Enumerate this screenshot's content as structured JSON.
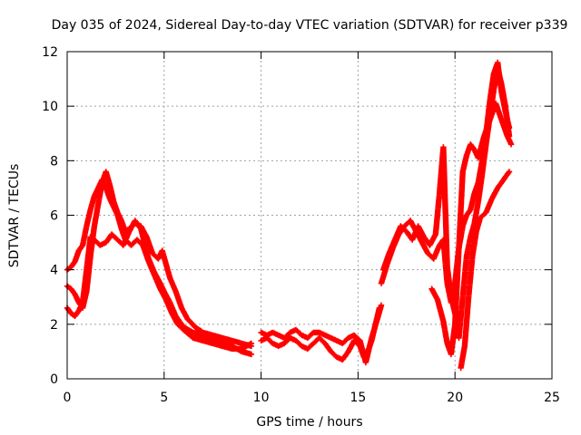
{
  "chart_data": {
    "type": "scatter",
    "title": "Day 035 of 2024, Sidereal Day-to-day VTEC variation (SDTVAR) for receiver p339",
    "xlabel": "GPS time / hours",
    "ylabel": "SDTVAR / TECUs",
    "xlim": [
      0,
      25
    ],
    "ylim": [
      0,
      12
    ],
    "xticks": [
      "0",
      "5",
      "10",
      "15",
      "20",
      "25"
    ],
    "yticks": [
      "0",
      "2",
      "4",
      "6",
      "8",
      "10",
      "12"
    ],
    "grid": true,
    "marker": "+",
    "color": "#ff0000",
    "series": [
      {
        "name": "SDTVAR",
        "comment": "approximate trace samples [hours, TECU] read from the figure",
        "curves": [
          [
            [
              0.0,
              3.4
            ],
            [
              0.2,
              3.3
            ],
            [
              0.4,
              3.1
            ],
            [
              0.6,
              2.8
            ],
            [
              0.8,
              2.6
            ],
            [
              1.0,
              3.2
            ],
            [
              1.2,
              4.5
            ],
            [
              1.4,
              5.6
            ],
            [
              1.6,
              6.4
            ],
            [
              1.8,
              7.2
            ],
            [
              2.0,
              7.6
            ],
            [
              2.2,
              7.1
            ],
            [
              2.4,
              6.5
            ],
            [
              2.6,
              6.1
            ],
            [
              2.8,
              5.8
            ],
            [
              3.0,
              5.4
            ],
            [
              3.2,
              5.5
            ],
            [
              3.5,
              5.7
            ],
            [
              3.8,
              5.6
            ],
            [
              4.1,
              5.2
            ],
            [
              4.4,
              4.6
            ],
            [
              4.7,
              4.4
            ],
            [
              4.9,
              4.7
            ],
            [
              5.1,
              4.2
            ],
            [
              5.3,
              3.7
            ],
            [
              5.6,
              3.2
            ],
            [
              5.9,
              2.6
            ],
            [
              6.2,
              2.2
            ],
            [
              6.6,
              1.9
            ],
            [
              7.0,
              1.7
            ],
            [
              7.5,
              1.6
            ],
            [
              8.0,
              1.5
            ],
            [
              8.5,
              1.4
            ],
            [
              9.0,
              1.3
            ],
            [
              9.5,
              1.2
            ]
          ],
          [
            [
              0.0,
              2.6
            ],
            [
              0.2,
              2.4
            ],
            [
              0.4,
              2.3
            ],
            [
              0.6,
              2.5
            ],
            [
              0.8,
              2.8
            ],
            [
              1.0,
              4.0
            ],
            [
              1.2,
              5.2
            ],
            [
              1.4,
              5.1
            ],
            [
              1.7,
              4.9
            ],
            [
              2.0,
              5.0
            ],
            [
              2.3,
              5.3
            ],
            [
              2.6,
              5.1
            ],
            [
              2.9,
              4.9
            ],
            [
              3.2,
              5.4
            ],
            [
              3.5,
              5.8
            ],
            [
              3.8,
              5.5
            ],
            [
              4.2,
              4.4
            ],
            [
              4.5,
              3.9
            ],
            [
              4.8,
              3.5
            ],
            [
              5.0,
              3.2
            ],
            [
              5.3,
              2.8
            ],
            [
              5.6,
              2.3
            ],
            [
              6.0,
              1.9
            ],
            [
              6.5,
              1.7
            ],
            [
              7.0,
              1.6
            ],
            [
              7.5,
              1.4
            ],
            [
              8.0,
              1.3
            ],
            [
              8.5,
              1.2
            ],
            [
              9.0,
              1.0
            ],
            [
              9.5,
              0.9
            ]
          ],
          [
            [
              0.0,
              4.0
            ],
            [
              0.2,
              4.1
            ],
            [
              0.4,
              4.3
            ],
            [
              0.6,
              4.7
            ],
            [
              0.8,
              4.9
            ],
            [
              1.0,
              5.6
            ],
            [
              1.2,
              6.2
            ],
            [
              1.4,
              6.7
            ],
            [
              1.6,
              7.0
            ],
            [
              1.8,
              7.3
            ],
            [
              2.0,
              7.0
            ],
            [
              2.2,
              6.6
            ],
            [
              2.4,
              6.3
            ],
            [
              2.6,
              6.0
            ],
            [
              2.8,
              5.5
            ],
            [
              3.0,
              5.1
            ],
            [
              3.3,
              4.9
            ],
            [
              3.6,
              5.1
            ],
            [
              3.9,
              4.9
            ],
            [
              4.2,
              4.3
            ],
            [
              4.5,
              3.8
            ],
            [
              4.8,
              3.3
            ],
            [
              5.1,
              2.9
            ],
            [
              5.4,
              2.4
            ],
            [
              5.7,
              2.0
            ],
            [
              6.0,
              1.8
            ],
            [
              6.5,
              1.5
            ],
            [
              7.0,
              1.4
            ],
            [
              7.5,
              1.3
            ],
            [
              8.0,
              1.2
            ],
            [
              8.5,
              1.1
            ],
            [
              9.0,
              1.1
            ],
            [
              9.5,
              1.3
            ]
          ],
          [
            [
              10.0,
              1.4
            ],
            [
              10.3,
              1.5
            ],
            [
              10.6,
              1.3
            ],
            [
              10.9,
              1.2
            ],
            [
              11.2,
              1.3
            ],
            [
              11.5,
              1.5
            ],
            [
              11.8,
              1.4
            ],
            [
              12.1,
              1.2
            ],
            [
              12.4,
              1.1
            ],
            [
              12.7,
              1.3
            ],
            [
              13.0,
              1.5
            ],
            [
              13.3,
              1.3
            ],
            [
              13.6,
              1.0
            ],
            [
              13.9,
              0.8
            ],
            [
              14.2,
              0.7
            ],
            [
              14.5,
              1.0
            ],
            [
              14.8,
              1.4
            ],
            [
              15.1,
              1.2
            ],
            [
              15.3,
              0.8
            ],
            [
              15.5,
              1.0
            ],
            [
              15.7,
              1.4
            ],
            [
              15.9,
              2.0
            ],
            [
              16.1,
              2.6
            ]
          ],
          [
            [
              10.0,
              1.7
            ],
            [
              10.3,
              1.6
            ],
            [
              10.6,
              1.7
            ],
            [
              10.9,
              1.6
            ],
            [
              11.2,
              1.5
            ],
            [
              11.5,
              1.7
            ],
            [
              11.8,
              1.8
            ],
            [
              12.1,
              1.6
            ],
            [
              12.4,
              1.5
            ],
            [
              12.7,
              1.7
            ],
            [
              13.0,
              1.7
            ],
            [
              13.3,
              1.6
            ],
            [
              13.6,
              1.5
            ],
            [
              13.9,
              1.4
            ],
            [
              14.2,
              1.3
            ],
            [
              14.5,
              1.5
            ],
            [
              14.8,
              1.6
            ],
            [
              15.1,
              1.4
            ],
            [
              15.4,
              0.6
            ],
            [
              15.7,
              1.5
            ],
            [
              16.0,
              2.2
            ],
            [
              16.2,
              2.7
            ]
          ],
          [
            [
              16.2,
              3.5
            ],
            [
              16.5,
              4.2
            ],
            [
              16.8,
              4.8
            ],
            [
              17.1,
              5.3
            ],
            [
              17.4,
              5.6
            ],
            [
              17.7,
              5.8
            ],
            [
              18.0,
              5.4
            ],
            [
              18.3,
              5.0
            ],
            [
              18.6,
              4.6
            ],
            [
              18.9,
              4.4
            ],
            [
              19.2,
              4.9
            ],
            [
              19.4,
              5.1
            ],
            [
              19.6,
              3.5
            ],
            [
              19.8,
              2.8
            ],
            [
              20.0,
              3.5
            ],
            [
              20.2,
              4.8
            ],
            [
              20.4,
              5.6
            ],
            [
              20.6,
              6.0
            ],
            [
              20.8,
              6.2
            ],
            [
              21.0,
              6.8
            ],
            [
              21.2,
              7.2
            ],
            [
              21.4,
              8.0
            ],
            [
              21.6,
              9.0
            ],
            [
              21.8,
              10.2
            ],
            [
              22.0,
              11.2
            ],
            [
              22.2,
              11.6
            ],
            [
              22.4,
              10.5
            ],
            [
              22.6,
              9.8
            ],
            [
              22.8,
              9.2
            ]
          ],
          [
            [
              16.3,
              4.0
            ],
            [
              16.6,
              4.6
            ],
            [
              16.9,
              5.1
            ],
            [
              17.2,
              5.6
            ],
            [
              17.5,
              5.4
            ],
            [
              17.8,
              5.1
            ],
            [
              18.1,
              5.6
            ],
            [
              18.4,
              5.2
            ],
            [
              18.7,
              4.9
            ],
            [
              19.0,
              5.3
            ],
            [
              19.2,
              6.8
            ],
            [
              19.4,
              8.5
            ],
            [
              19.6,
              4.1
            ],
            [
              19.8,
              3.0
            ],
            [
              20.0,
              2.4
            ],
            [
              20.2,
              1.5
            ],
            [
              20.4,
              3.0
            ],
            [
              20.6,
              4.5
            ],
            [
              20.8,
              5.2
            ],
            [
              21.0,
              5.7
            ],
            [
              21.2,
              6.5
            ],
            [
              21.4,
              7.5
            ],
            [
              21.6,
              8.6
            ],
            [
              21.8,
              9.6
            ],
            [
              22.0,
              10.6
            ],
            [
              22.2,
              11.4
            ],
            [
              22.4,
              10.8
            ],
            [
              22.6,
              10.0
            ],
            [
              22.8,
              8.9
            ]
          ],
          [
            [
              18.8,
              3.3
            ],
            [
              19.1,
              2.9
            ],
            [
              19.4,
              2.1
            ],
            [
              19.6,
              1.3
            ],
            [
              19.8,
              0.9
            ],
            [
              20.0,
              2.0
            ],
            [
              20.2,
              4.8
            ],
            [
              20.4,
              7.6
            ],
            [
              20.6,
              8.2
            ],
            [
              20.8,
              8.6
            ],
            [
              21.0,
              8.4
            ],
            [
              21.2,
              8.1
            ],
            [
              21.5,
              8.9
            ],
            [
              21.8,
              9.5
            ],
            [
              22.1,
              10.1
            ],
            [
              22.4,
              9.5
            ],
            [
              22.7,
              8.9
            ],
            [
              22.9,
              8.6
            ]
          ],
          [
            [
              20.3,
              0.4
            ],
            [
              20.5,
              1.2
            ],
            [
              20.7,
              3.0
            ],
            [
              20.9,
              4.5
            ],
            [
              21.1,
              5.4
            ],
            [
              21.3,
              5.9
            ],
            [
              21.6,
              6.1
            ],
            [
              21.9,
              6.6
            ],
            [
              22.2,
              7.0
            ],
            [
              22.5,
              7.3
            ],
            [
              22.8,
              7.6
            ]
          ]
        ]
      }
    ]
  }
}
